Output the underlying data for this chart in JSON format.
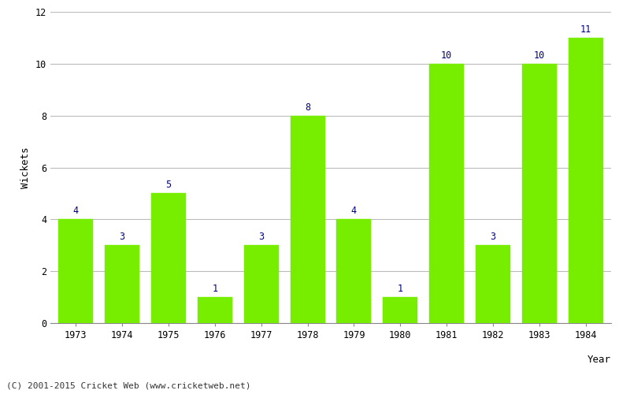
{
  "years": [
    "1973",
    "1974",
    "1975",
    "1976",
    "1977",
    "1978",
    "1979",
    "1980",
    "1981",
    "1982",
    "1983",
    "1984"
  ],
  "values": [
    4,
    3,
    5,
    1,
    3,
    8,
    4,
    1,
    10,
    3,
    10,
    11
  ],
  "bar_color": "#77ee00",
  "bar_edge_color": "#77ee00",
  "label_color": "#000080",
  "xlabel": "Year",
  "ylabel": "Wickets",
  "ylim": [
    0,
    12
  ],
  "yticks": [
    0,
    2,
    4,
    6,
    8,
    10,
    12
  ],
  "background_color": "#ffffff",
  "grid_color": "#bbbbbb",
  "footnote": "(C) 2001-2015 Cricket Web (www.cricketweb.net)",
  "label_fontsize": 8.5,
  "axis_label_fontsize": 9,
  "tick_fontsize": 8.5,
  "footnote_fontsize": 8,
  "bar_width": 0.75
}
